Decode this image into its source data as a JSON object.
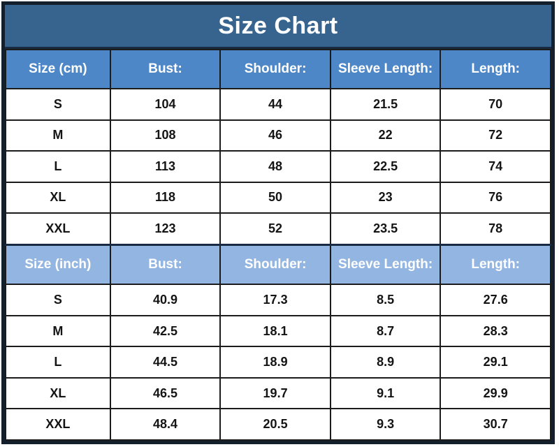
{
  "title": "Size Chart",
  "colors": {
    "outer_border": "#141f2c",
    "title_bg": "#36648f",
    "header_cm_bg": "#4e87c7",
    "header_inch_bg": "#93b5e1",
    "cell_border": "#1b1b1b",
    "header_text": "#ffffff",
    "cell_text": "#141414"
  },
  "chart_data": {
    "type": "table",
    "title": "Size Chart",
    "layout": "two stacked sections (cm and inch), 5 columns, black gridlines, bold centered text",
    "sections": [
      {
        "unit": "cm",
        "header": [
          "Size (cm)",
          "Bust:",
          "Shoulder:",
          "Sleeve Length:",
          "Length:"
        ],
        "rows": [
          [
            "S",
            "104",
            "44",
            "21.5",
            "70"
          ],
          [
            "M",
            "108",
            "46",
            "22",
            "72"
          ],
          [
            "L",
            "113",
            "48",
            "22.5",
            "74"
          ],
          [
            "XL",
            "118",
            "50",
            "23",
            "76"
          ],
          [
            "XXL",
            "123",
            "52",
            "23.5",
            "78"
          ]
        ]
      },
      {
        "unit": "inch",
        "header": [
          "Size (inch)",
          "Bust:",
          "Shoulder:",
          "Sleeve Length:",
          "Length:"
        ],
        "rows": [
          [
            "S",
            "40.9",
            "17.3",
            "8.5",
            "27.6"
          ],
          [
            "M",
            "42.5",
            "18.1",
            "8.7",
            "28.3"
          ],
          [
            "L",
            "44.5",
            "18.9",
            "8.9",
            "29.1"
          ],
          [
            "XL",
            "46.5",
            "19.7",
            "9.1",
            "29.9"
          ],
          [
            "XXL",
            "48.4",
            "20.5",
            "9.3",
            "30.7"
          ]
        ]
      }
    ]
  }
}
